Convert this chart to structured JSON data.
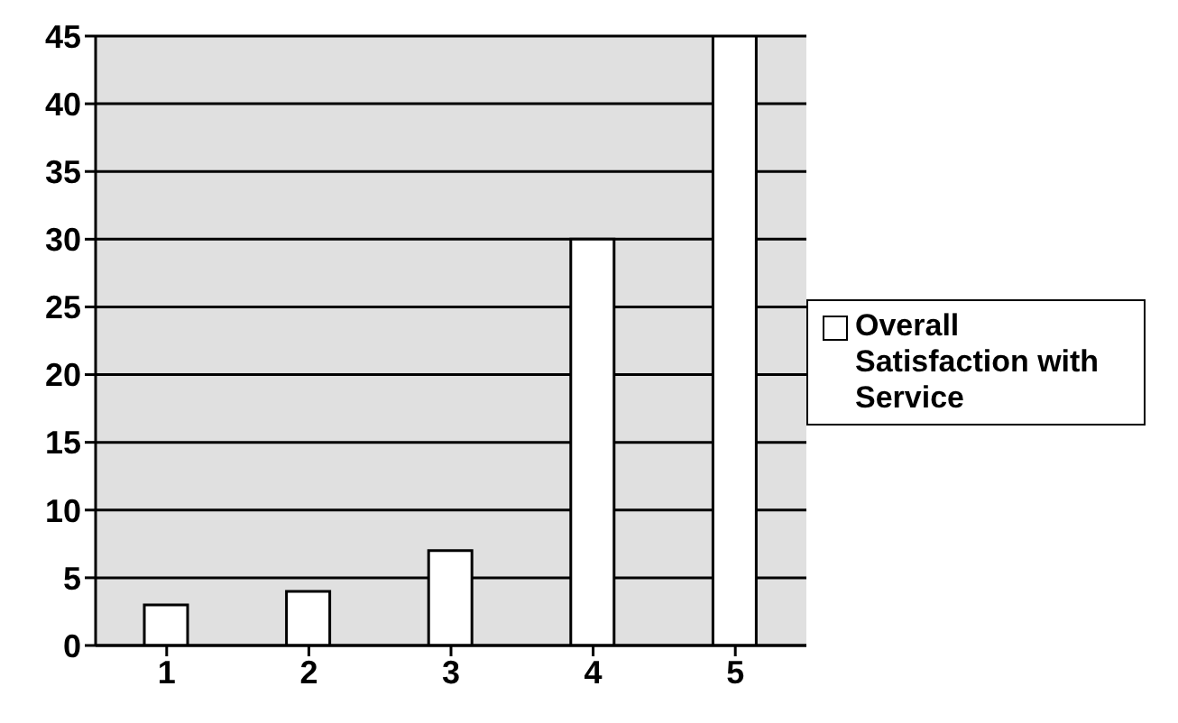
{
  "chart_data": {
    "type": "bar",
    "categories": [
      "1",
      "2",
      "3",
      "4",
      "5"
    ],
    "series": [
      {
        "name": "Overall Satisfaction with Service",
        "color": "#ffffff",
        "values": [
          3,
          4,
          7,
          30,
          45
        ]
      }
    ],
    "ylim": [
      0,
      45
    ],
    "yticks": [
      0,
      5,
      10,
      15,
      20,
      25,
      30,
      35,
      40,
      45
    ],
    "grid": "y",
    "legend": "right"
  }
}
